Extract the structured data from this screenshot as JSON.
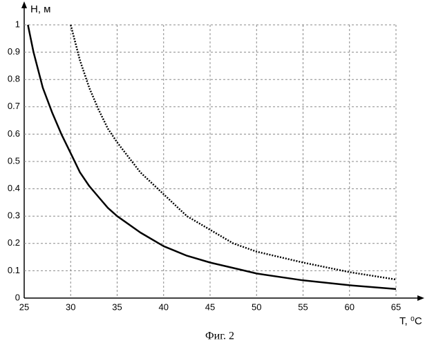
{
  "chart_data": {
    "type": "line",
    "y_label": "H, м",
    "x_label": "T, ⁰C",
    "caption": "Фиг. 2",
    "xlim": [
      25,
      65
    ],
    "xticks": [
      25,
      30,
      35,
      40,
      45,
      50,
      55,
      60,
      65
    ],
    "ylim": [
      0,
      1
    ],
    "yticks": [
      0,
      0.1,
      0.2,
      0.3,
      0.4,
      0.5,
      0.6,
      0.7,
      0.8,
      0.9,
      1
    ],
    "grid": true,
    "series": [
      {
        "color": "#000000",
        "style": "solid",
        "x": [
          25.4,
          26,
          27,
          28,
          29,
          30,
          31,
          32,
          33,
          34,
          35,
          37.5,
          40,
          42.5,
          45,
          47.5,
          50,
          55,
          60,
          65
        ],
        "values": [
          1,
          0.9,
          0.77,
          0.68,
          0.6,
          0.53,
          0.46,
          0.41,
          0.37,
          0.33,
          0.3,
          0.24,
          0.19,
          0.155,
          0.13,
          0.11,
          0.09,
          0.065,
          0.047,
          0.033
        ]
      },
      {
        "color": "#000000",
        "style": "dotted",
        "x": [
          30,
          31,
          32,
          33,
          34,
          35,
          37.5,
          40,
          42.5,
          45,
          47.5,
          50,
          55,
          60,
          65
        ],
        "values": [
          1,
          0.87,
          0.77,
          0.69,
          0.62,
          0.57,
          0.46,
          0.38,
          0.3,
          0.25,
          0.2,
          0.17,
          0.13,
          0.095,
          0.068
        ]
      }
    ]
  }
}
